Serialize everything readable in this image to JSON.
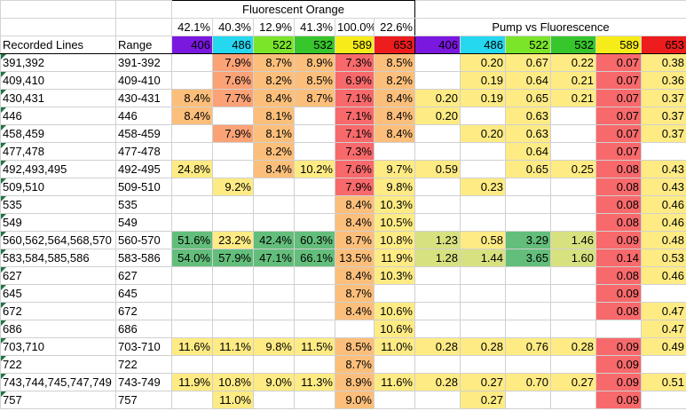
{
  "section_titles": [
    "Fluorescent Orange",
    "Pump vs Fluorescence"
  ],
  "header": {
    "recorded_lines": "Recorded Lines",
    "range": "Range",
    "percents": [
      "42.1%",
      "40.3%",
      "12.9%",
      "41.3%",
      "100.0%",
      "22.6%"
    ],
    "wavelengths": [
      "406",
      "486",
      "522",
      "532",
      "589",
      "653"
    ],
    "wavelength_colors": [
      "#7B18E0",
      "#25D8F0",
      "#7BE52A",
      "#37C62C",
      "#F6EC1A",
      "#EE1D1D"
    ]
  },
  "colors": {
    "red": "#F8696B",
    "orange": "#FBA276",
    "light_orange": "#FCBF7B",
    "yellow": "#FFEB84",
    "yellow_green": "#D8E17F",
    "green": "#63BE7B"
  },
  "rows": [
    {
      "lines": "391,392",
      "range": "391-392",
      "f": [
        "",
        "7.9%",
        "8.7%",
        "8.9%",
        "7.3%",
        "8.5%"
      ],
      "p": [
        "",
        "0.20",
        "0.67",
        "0.22",
        "0.07",
        "0.38"
      ]
    },
    {
      "lines": "409,410",
      "range": "409-410",
      "f": [
        "",
        "7.6%",
        "8.2%",
        "8.5%",
        "6.9%",
        "8.2%"
      ],
      "p": [
        "",
        "0.19",
        "0.64",
        "0.21",
        "0.07",
        "0.36"
      ]
    },
    {
      "lines": "430,431",
      "range": "430-431",
      "f": [
        "8.4%",
        "7.7%",
        "8.4%",
        "8.7%",
        "7.1%",
        "8.4%"
      ],
      "p": [
        "0.20",
        "0.19",
        "0.65",
        "0.21",
        "0.07",
        "0.37"
      ]
    },
    {
      "lines": "446",
      "range": "446",
      "f": [
        "8.4%",
        "",
        "8.1%",
        "",
        "7.1%",
        "8.4%"
      ],
      "p": [
        "0.20",
        "",
        "0.63",
        "",
        "0.07",
        "0.37"
      ]
    },
    {
      "lines": "458,459",
      "range": "458-459",
      "f": [
        "",
        "7.9%",
        "8.1%",
        "",
        "7.1%",
        "8.4%"
      ],
      "p": [
        "",
        "0.20",
        "0.63",
        "",
        "0.07",
        "0.37"
      ]
    },
    {
      "lines": "477,478",
      "range": "477-478",
      "f": [
        "",
        "",
        "8.2%",
        "",
        "7.3%",
        ""
      ],
      "p": [
        "",
        "",
        "0.64",
        "",
        "0.07",
        ""
      ]
    },
    {
      "lines": "492,493,495",
      "range": "492-495",
      "f": [
        "24.8%",
        "",
        "8.4%",
        "10.2%",
        "7.6%",
        "9.7%"
      ],
      "p": [
        "0.59",
        "",
        "0.65",
        "0.25",
        "0.08",
        "0.43"
      ]
    },
    {
      "lines": "509,510",
      "range": "509-510",
      "f": [
        "",
        "9.2%",
        "",
        "",
        "7.9%",
        "9.8%"
      ],
      "p": [
        "",
        "0.23",
        "",
        "",
        "0.08",
        "0.43"
      ]
    },
    {
      "lines": "535",
      "range": "535",
      "f": [
        "",
        "",
        "",
        "",
        "8.4%",
        "10.3%"
      ],
      "p": [
        "",
        "",
        "",
        "",
        "0.08",
        "0.46"
      ]
    },
    {
      "lines": "549",
      "range": "549",
      "f": [
        "",
        "",
        "",
        "",
        "8.4%",
        "10.5%"
      ],
      "p": [
        "",
        "",
        "",
        "",
        "0.08",
        "0.46"
      ]
    },
    {
      "lines": "560,562,564,568,570",
      "range": "560-570",
      "f": [
        "51.6%",
        "23.2%",
        "42.4%",
        "60.3%",
        "8.7%",
        "10.8%"
      ],
      "p": [
        "1.23",
        "0.58",
        "3.29",
        "1.46",
        "0.09",
        "0.48"
      ]
    },
    {
      "lines": "583,584,585,586",
      "range": "583-586",
      "f": [
        "54.0%",
        "57.9%",
        "47.1%",
        "66.1%",
        "13.5%",
        "11.9%"
      ],
      "p": [
        "1.28",
        "1.44",
        "3.65",
        "1.60",
        "0.14",
        "0.53"
      ]
    },
    {
      "lines": "627",
      "range": "627",
      "f": [
        "",
        "",
        "",
        "",
        "8.4%",
        "10.3%"
      ],
      "p": [
        "",
        "",
        "",
        "",
        "0.08",
        "0.46"
      ]
    },
    {
      "lines": "645",
      "range": "645",
      "f": [
        "",
        "",
        "",
        "",
        "8.7%",
        ""
      ],
      "p": [
        "",
        "",
        "",
        "",
        "0.09",
        ""
      ]
    },
    {
      "lines": "672",
      "range": "672",
      "f": [
        "",
        "",
        "",
        "",
        "8.4%",
        "10.6%"
      ],
      "p": [
        "",
        "",
        "",
        "",
        "0.08",
        "0.47"
      ]
    },
    {
      "lines": "686",
      "range": "686",
      "f": [
        "",
        "",
        "",
        "",
        "",
        "10.6%"
      ],
      "p": [
        "",
        "",
        "",
        "",
        "",
        "0.47"
      ]
    },
    {
      "lines": "703,710",
      "range": "703-710",
      "f": [
        "11.6%",
        "11.1%",
        "9.8%",
        "11.5%",
        "8.5%",
        "11.0%"
      ],
      "p": [
        "0.28",
        "0.28",
        "0.76",
        "0.28",
        "0.09",
        "0.49"
      ]
    },
    {
      "lines": "722",
      "range": "722",
      "f": [
        "",
        "",
        "",
        "",
        "8.7%",
        ""
      ],
      "p": [
        "",
        "",
        "",
        "",
        "0.09",
        ""
      ]
    },
    {
      "lines": "743,744,745,747,749",
      "range": "743-749",
      "f": [
        "11.9%",
        "10.8%",
        "9.0%",
        "11.3%",
        "8.9%",
        "11.6%"
      ],
      "p": [
        "0.28",
        "0.27",
        "0.70",
        "0.27",
        "0.09",
        "0.51"
      ]
    },
    {
      "lines": "757",
      "range": "757",
      "f": [
        "",
        "11.0%",
        "",
        "",
        "9.0%",
        ""
      ],
      "p": [
        "",
        "0.27",
        "",
        "",
        "0.09",
        ""
      ]
    }
  ],
  "fill_key": {
    "f": [
      [
        "",
        "orange",
        "light_orange",
        "light_orange",
        "red",
        "light_orange"
      ],
      [
        "",
        "orange",
        "light_orange",
        "light_orange",
        "red",
        "light_orange"
      ],
      [
        "light_orange",
        "orange",
        "light_orange",
        "light_orange",
        "red",
        "light_orange"
      ],
      [
        "light_orange",
        "",
        "light_orange",
        "",
        "red",
        "light_orange"
      ],
      [
        "",
        "orange",
        "light_orange",
        "",
        "red",
        "light_orange"
      ],
      [
        "",
        "",
        "light_orange",
        "",
        "red",
        ""
      ],
      [
        "yellow",
        "",
        "light_orange",
        "yellow",
        "red",
        "yellow"
      ],
      [
        "",
        "yellow",
        "",
        "",
        "red",
        "yellow"
      ],
      [
        "",
        "",
        "",
        "",
        "light_orange",
        "yellow"
      ],
      [
        "",
        "",
        "",
        "",
        "light_orange",
        "yellow"
      ],
      [
        "green",
        "yellow",
        "green",
        "green",
        "light_orange",
        "yellow"
      ],
      [
        "green",
        "green",
        "green",
        "green",
        "light_orange",
        "yellow"
      ],
      [
        "",
        "",
        "",
        "",
        "light_orange",
        "yellow"
      ],
      [
        "",
        "",
        "",
        "",
        "light_orange",
        ""
      ],
      [
        "",
        "",
        "",
        "",
        "light_orange",
        "yellow"
      ],
      [
        "",
        "",
        "",
        "",
        "",
        "yellow"
      ],
      [
        "yellow",
        "yellow",
        "yellow",
        "yellow",
        "light_orange",
        "yellow"
      ],
      [
        "",
        "",
        "",
        "",
        "light_orange",
        ""
      ],
      [
        "yellow",
        "yellow",
        "yellow",
        "yellow",
        "light_orange",
        "yellow"
      ],
      [
        "",
        "yellow",
        "",
        "",
        "light_orange",
        ""
      ]
    ],
    "p": [
      [
        "",
        "yellow",
        "yellow",
        "yellow",
        "red",
        "yellow"
      ],
      [
        "",
        "yellow",
        "yellow",
        "yellow",
        "red",
        "yellow"
      ],
      [
        "yellow",
        "yellow",
        "yellow",
        "yellow",
        "red",
        "yellow"
      ],
      [
        "yellow",
        "",
        "yellow",
        "",
        "red",
        "yellow"
      ],
      [
        "",
        "yellow",
        "yellow",
        "",
        "red",
        "yellow"
      ],
      [
        "",
        "",
        "yellow",
        "",
        "red",
        ""
      ],
      [
        "yellow",
        "",
        "yellow",
        "yellow",
        "red",
        "yellow"
      ],
      [
        "",
        "yellow",
        "",
        "",
        "red",
        "yellow"
      ],
      [
        "",
        "",
        "",
        "",
        "red",
        "yellow"
      ],
      [
        "",
        "",
        "",
        "",
        "red",
        "yellow"
      ],
      [
        "yellow_green",
        "yellow",
        "green",
        "yellow_green",
        "red",
        "yellow"
      ],
      [
        "yellow_green",
        "yellow_green",
        "green",
        "yellow_green",
        "red",
        "yellow"
      ],
      [
        "",
        "",
        "",
        "",
        "red",
        "yellow"
      ],
      [
        "",
        "",
        "",
        "",
        "red",
        ""
      ],
      [
        "",
        "",
        "",
        "",
        "red",
        "yellow"
      ],
      [
        "",
        "",
        "",
        "",
        "",
        "yellow"
      ],
      [
        "yellow",
        "yellow",
        "yellow",
        "yellow",
        "red",
        "yellow"
      ],
      [
        "",
        "",
        "",
        "",
        "red",
        ""
      ],
      [
        "yellow",
        "yellow",
        "yellow",
        "yellow",
        "red",
        "yellow"
      ],
      [
        "",
        "yellow",
        "",
        "",
        "red",
        ""
      ]
    ]
  }
}
